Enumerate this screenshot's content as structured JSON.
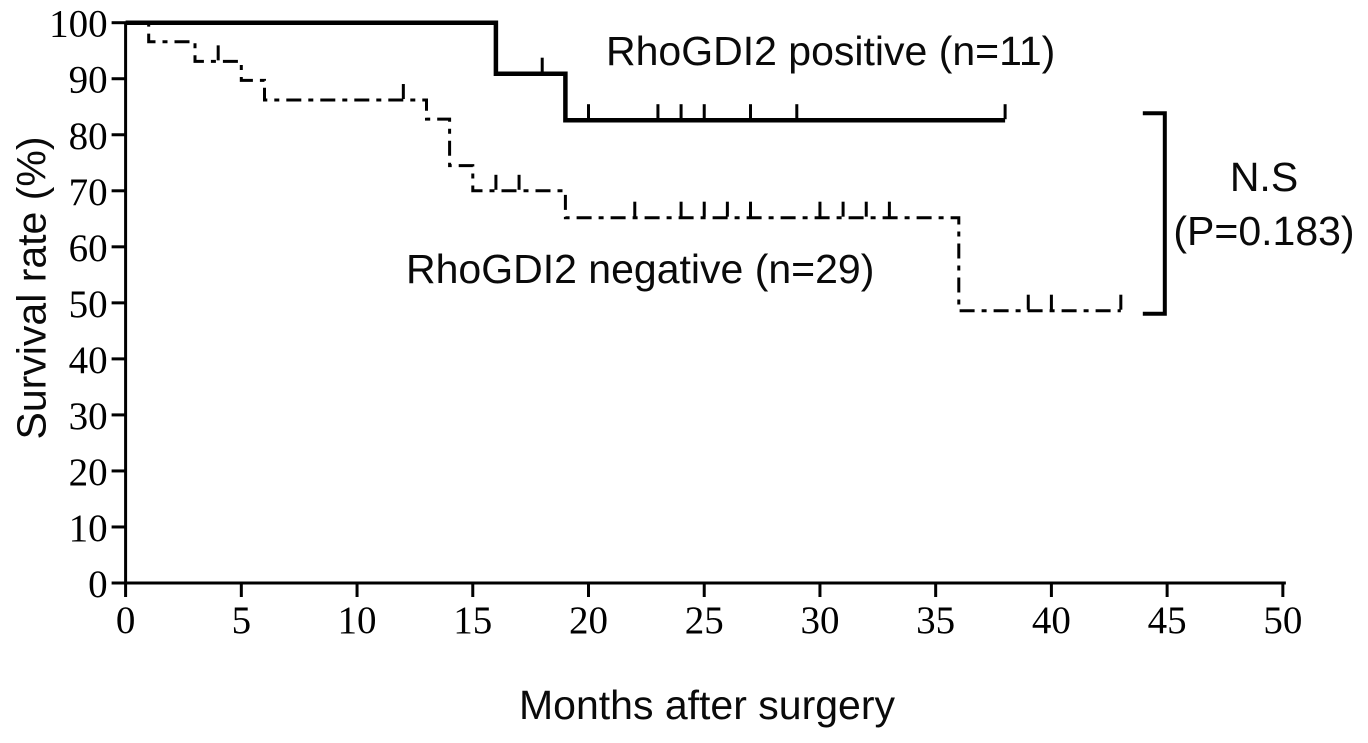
{
  "labels": {
    "series_positive": "RhoGDI2 positive (n=11)",
    "series_negative": "RhoGDI2 negative (n=29)",
    "annotation_line1": "N.S",
    "annotation_line2": "(P=0.183)",
    "xlabel": "Months after surgery",
    "ylabel": "Survival rate (%)"
  },
  "chart_data": {
    "type": "line",
    "subtype": "kaplan-meier-step",
    "title": "",
    "xlabel": "Months after surgery",
    "ylabel": "Survival rate (%)",
    "xlim": [
      0,
      50
    ],
    "ylim": [
      0,
      100
    ],
    "xticks": [
      0,
      5,
      10,
      15,
      20,
      25,
      30,
      35,
      40,
      45,
      50
    ],
    "yticks": [
      0,
      10,
      20,
      30,
      40,
      50,
      60,
      70,
      80,
      90,
      100
    ],
    "grid": false,
    "line_color": "#000000",
    "legend_position": "inline-labels",
    "series": [
      {
        "name": "RhoGDI2 positive (n=11)",
        "line_style": "solid",
        "steps": [
          [
            0,
            100
          ],
          [
            16,
            100
          ],
          [
            16,
            90.9
          ],
          [
            19,
            90.9
          ],
          [
            19,
            82.6
          ],
          [
            38,
            82.6
          ]
        ],
        "censor_marks": [
          [
            18,
            90.9
          ],
          [
            20,
            82.6
          ],
          [
            23,
            82.6
          ],
          [
            24,
            82.6
          ],
          [
            25,
            82.6
          ],
          [
            27,
            82.6
          ],
          [
            29,
            82.6
          ],
          [
            38,
            82.6
          ]
        ]
      },
      {
        "name": "RhoGDI2 negative (n=29)",
        "line_style": "dash-dot",
        "steps": [
          [
            0,
            100
          ],
          [
            1,
            100
          ],
          [
            1,
            96.6
          ],
          [
            3,
            96.6
          ],
          [
            3,
            93.1
          ],
          [
            5,
            93.1
          ],
          [
            5,
            89.7
          ],
          [
            6,
            89.7
          ],
          [
            6,
            86.2
          ],
          [
            13,
            86.2
          ],
          [
            13,
            82.8
          ],
          [
            14,
            82.8
          ],
          [
            14,
            74.5
          ],
          [
            15,
            74.5
          ],
          [
            15,
            70.0
          ],
          [
            19,
            70.0
          ],
          [
            19,
            65.2
          ],
          [
            36,
            65.2
          ],
          [
            36,
            48.6
          ],
          [
            43,
            48.6
          ]
        ],
        "censor_marks": [
          [
            4,
            93.1
          ],
          [
            12,
            86.2
          ],
          [
            16,
            70.0
          ],
          [
            17,
            70.0
          ],
          [
            22,
            65.2
          ],
          [
            24,
            65.2
          ],
          [
            25,
            65.2
          ],
          [
            26,
            65.2
          ],
          [
            27,
            65.2
          ],
          [
            30,
            65.2
          ],
          [
            31,
            65.2
          ],
          [
            32,
            65.2
          ],
          [
            33,
            65.2
          ],
          [
            39,
            48.6
          ],
          [
            40,
            48.6
          ],
          [
            43,
            48.6
          ]
        ]
      }
    ],
    "annotation": {
      "line1": "N.S",
      "line2": "(P=0.183)",
      "bracket": {
        "at_month": 44.9,
        "from_pct": 82.6,
        "to_pct": 48.6
      }
    }
  }
}
